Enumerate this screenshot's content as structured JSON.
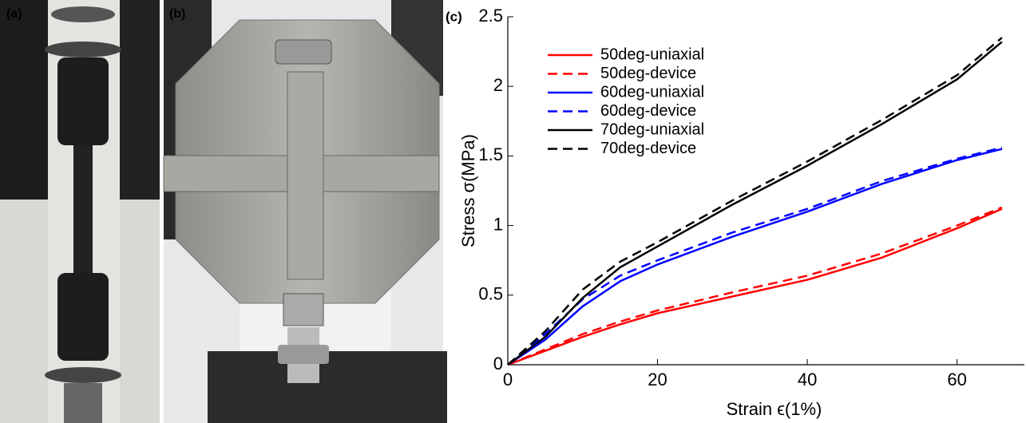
{
  "photo_labels": [
    "(a)",
    "(b)"
  ],
  "chart_data": {
    "type": "line",
    "panel_label": "(c)",
    "x_label": "Strain ϵ(1%)",
    "y_label": "Stress σ(MPa)",
    "x": [
      0,
      5,
      10,
      15,
      20,
      30,
      40,
      50,
      60,
      66
    ],
    "series": [
      {
        "name": "50deg-uniaxial",
        "color": "#ff0000",
        "style": "solid",
        "values": [
          0,
          0.1,
          0.2,
          0.29,
          0.37,
          0.49,
          0.61,
          0.77,
          0.98,
          1.12
        ]
      },
      {
        "name": "50deg-device",
        "color": "#ff0000",
        "style": "dashed",
        "values": [
          0,
          0.11,
          0.22,
          0.31,
          0.39,
          0.52,
          0.64,
          0.8,
          1.0,
          1.13
        ]
      },
      {
        "name": "60deg-uniaxial",
        "color": "#0000ff",
        "style": "solid",
        "values": [
          0,
          0.18,
          0.42,
          0.6,
          0.72,
          0.92,
          1.1,
          1.3,
          1.47,
          1.55
        ]
      },
      {
        "name": "60deg-device",
        "color": "#0000ff",
        "style": "dashed",
        "values": [
          0,
          0.22,
          0.47,
          0.64,
          0.75,
          0.95,
          1.12,
          1.32,
          1.48,
          1.56
        ]
      },
      {
        "name": "70deg-uniaxial",
        "color": "#000000",
        "style": "solid",
        "values": [
          0,
          0.2,
          0.48,
          0.7,
          0.85,
          1.15,
          1.43,
          1.73,
          2.05,
          2.32
        ]
      },
      {
        "name": "70deg-device",
        "color": "#000000",
        "style": "dashed",
        "values": [
          0,
          0.24,
          0.54,
          0.74,
          0.88,
          1.18,
          1.46,
          1.76,
          2.08,
          2.35
        ]
      }
    ],
    "xlim": [
      0,
      69
    ],
    "ylim": [
      0,
      2.5
    ],
    "xticks": [
      0,
      20,
      40,
      60
    ],
    "yticks": [
      0,
      0.5,
      1,
      1.5,
      2,
      2.5
    ],
    "legend": "upper left"
  }
}
